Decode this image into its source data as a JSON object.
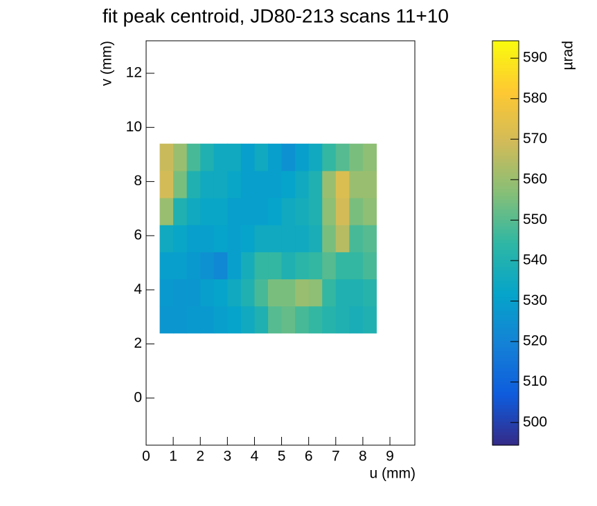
{
  "chart_data": {
    "type": "heatmap",
    "title": "fit peak centroid, JD80-213 scans 11+10",
    "x_label": "u (mm)",
    "y_label": "v (mm)",
    "z_label": "µrad",
    "xlim": [
      0,
      9.92
    ],
    "xticks": [
      0,
      1,
      2,
      3,
      4,
      5,
      6,
      7,
      8,
      9
    ],
    "ylim": [
      -1.74,
      13.2
    ],
    "yticks": [
      0,
      2,
      4,
      6,
      8,
      10,
      12
    ],
    "zlim": [
      494.4,
      594.3
    ],
    "zticks": [
      500,
      510,
      520,
      530,
      540,
      550,
      560,
      570,
      580,
      590
    ],
    "colorscale": [
      "#352a87",
      "#0f5cdd",
      "#1481d6",
      "#06a4ca",
      "#2eb7a4",
      "#87bf77",
      "#d1bb59",
      "#fec832",
      "#f9fb0e"
    ],
    "x_edges": [
      0.5,
      1.0,
      1.5,
      2.0,
      2.5,
      3.0,
      3.5,
      4.0,
      4.5,
      5.0,
      5.5,
      6.0,
      6.5,
      7.0,
      7.5,
      8.0,
      8.5
    ],
    "y_edges": [
      2.4,
      3.4,
      4.4,
      5.4,
      6.4,
      7.4,
      8.4,
      9.4
    ],
    "z": [
      [
        527,
        527,
        528,
        528,
        530,
        532,
        535,
        540,
        550,
        552,
        548,
        545,
        542,
        540,
        538,
        540
      ],
      [
        528,
        527,
        527,
        530,
        532,
        535,
        540,
        548,
        555,
        555,
        560,
        558,
        545,
        540,
        540,
        542
      ],
      [
        530,
        530,
        528,
        525,
        522,
        530,
        537,
        545,
        545,
        540,
        543,
        545,
        550,
        545,
        545,
        548
      ],
      [
        535,
        533,
        530,
        530,
        532,
        530,
        532,
        535,
        535,
        535,
        535,
        538,
        555,
        565,
        548,
        550
      ],
      [
        560,
        540,
        535,
        533,
        533,
        530,
        530,
        530,
        532,
        535,
        537,
        540,
        558,
        570,
        555,
        558
      ],
      [
        570,
        555,
        540,
        535,
        535,
        533,
        530,
        530,
        530,
        532,
        535,
        540,
        560,
        572,
        560,
        560
      ],
      [
        568,
        560,
        548,
        540,
        535,
        535,
        530,
        535,
        530,
        525,
        530,
        535,
        545,
        550,
        555,
        558
      ]
    ]
  }
}
